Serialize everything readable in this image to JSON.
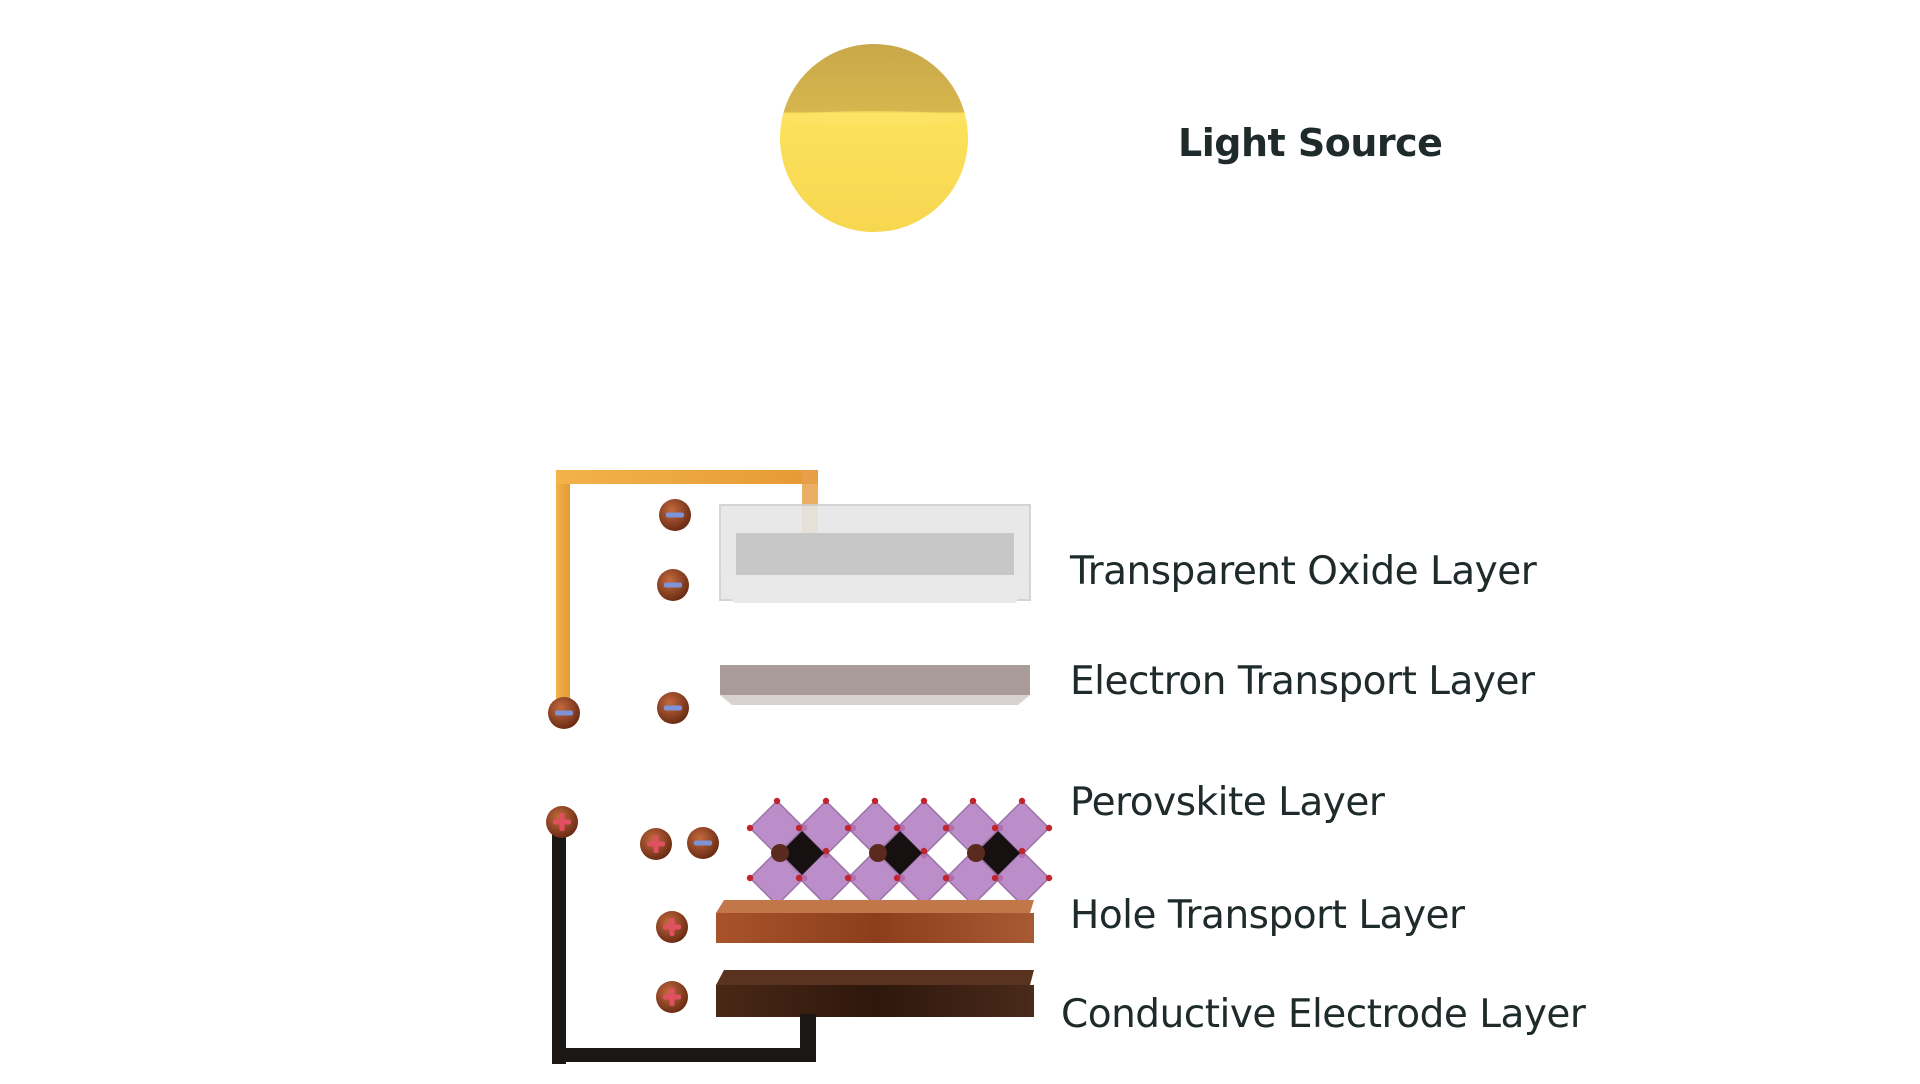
{
  "labels": {
    "light_source": "Light Source",
    "transparent_oxide": "Transparent Oxide Layer",
    "electron_transport": "Electron Transport Layer",
    "perovskite": "Perovskite Layer",
    "hole_transport": "Hole Transport Layer",
    "conductive_electrode": "Conductive Electrode Layer"
  },
  "charges": {
    "negative_symbol": "−",
    "positive_symbol": "+"
  },
  "colors": {
    "sun_top": "#cfae4d",
    "sun_bottom": "#fde45a",
    "wire_top": "#f2a93b",
    "wire_bottom": "#1a1410",
    "oxide": "#d0d0d0",
    "etl": "#a89a96",
    "perovskite": "#b07ac0",
    "htl": "#9a4a24",
    "electrode": "#3a1f12",
    "charge_ball": "#9b4a2a",
    "negative_mark": "#7f94d8",
    "positive_mark": "#e05060"
  }
}
